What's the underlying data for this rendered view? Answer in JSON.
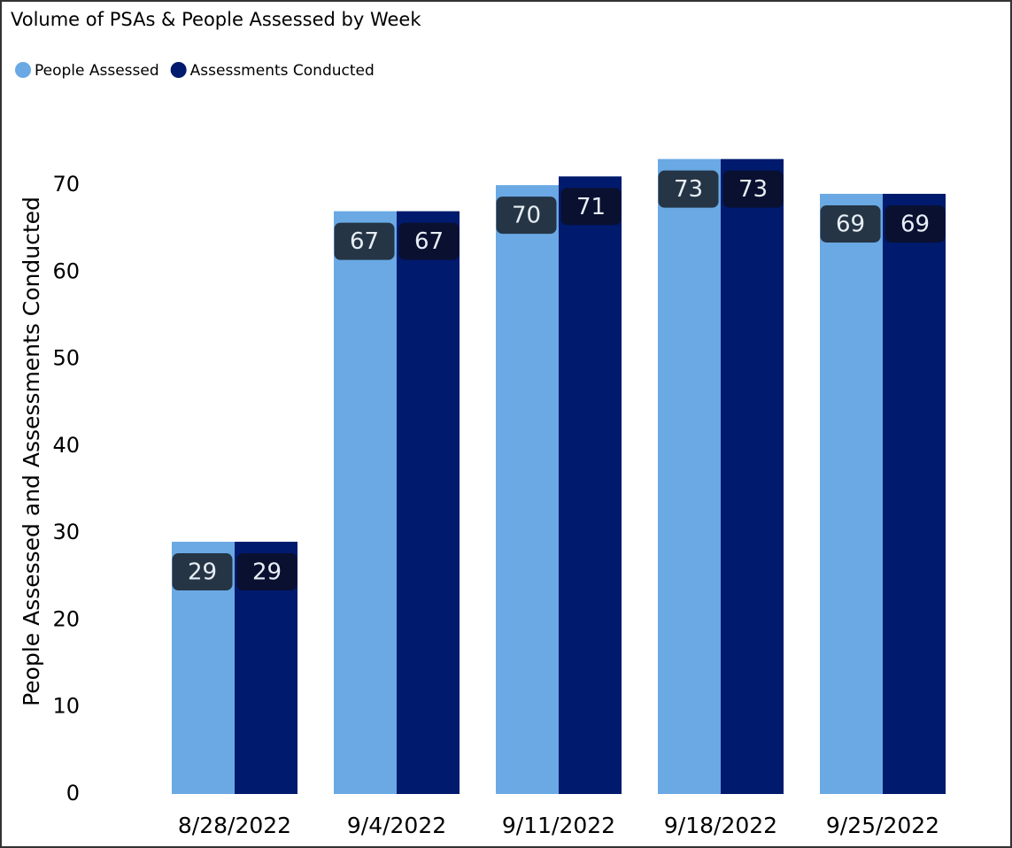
{
  "chart_data": {
    "type": "bar",
    "title": "Volume of PSAs & People Assessed by Week",
    "y_label": "People Assessed and Assessments Conducted",
    "categories": [
      "8/28/2022",
      "9/4/2022",
      "9/11/2022",
      "9/18/2022",
      "9/25/2022"
    ],
    "series": [
      {
        "name": "People Assessed",
        "color": "#6aa9e4",
        "values": [
          29,
          67,
          70,
          73,
          69
        ]
      },
      {
        "name": "Assessments Conducted",
        "color": "#001a6e",
        "values": [
          29,
          67,
          71,
          73,
          69
        ]
      }
    ],
    "ylim": [
      0,
      75
    ],
    "yticks": [
      0,
      10,
      20,
      30,
      40,
      50,
      60,
      70
    ],
    "grid": false,
    "legend": "top-left"
  }
}
